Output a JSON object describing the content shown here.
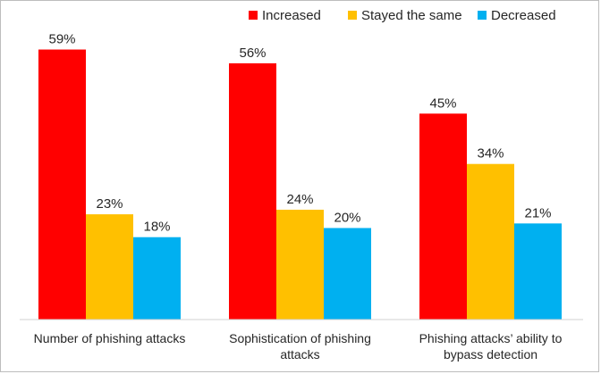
{
  "chart_data": {
    "type": "bar",
    "title": "",
    "xlabel": "",
    "ylabel": "",
    "ylim": [
      0,
      63
    ],
    "grid": false,
    "legend_position": "top-right",
    "categories": [
      [
        "Number of phishing attacks"
      ],
      [
        "Sophistication of phishing",
        "attacks"
      ],
      [
        "Phishing attacks’ ability to",
        "bypass detection"
      ]
    ],
    "series": [
      {
        "name": "Increased",
        "color": "#ff0000",
        "values": [
          59,
          56,
          45
        ],
        "labels": [
          "59%",
          "56%",
          "45%"
        ]
      },
      {
        "name": "Stayed the same",
        "color": "#ffc000",
        "values": [
          23,
          24,
          34
        ],
        "labels": [
          "23%",
          "24%",
          "34%"
        ]
      },
      {
        "name": "Decreased",
        "color": "#00b0f0",
        "values": [
          18,
          20,
          21
        ],
        "labels": [
          "18%",
          "20%",
          "21%"
        ]
      }
    ]
  }
}
